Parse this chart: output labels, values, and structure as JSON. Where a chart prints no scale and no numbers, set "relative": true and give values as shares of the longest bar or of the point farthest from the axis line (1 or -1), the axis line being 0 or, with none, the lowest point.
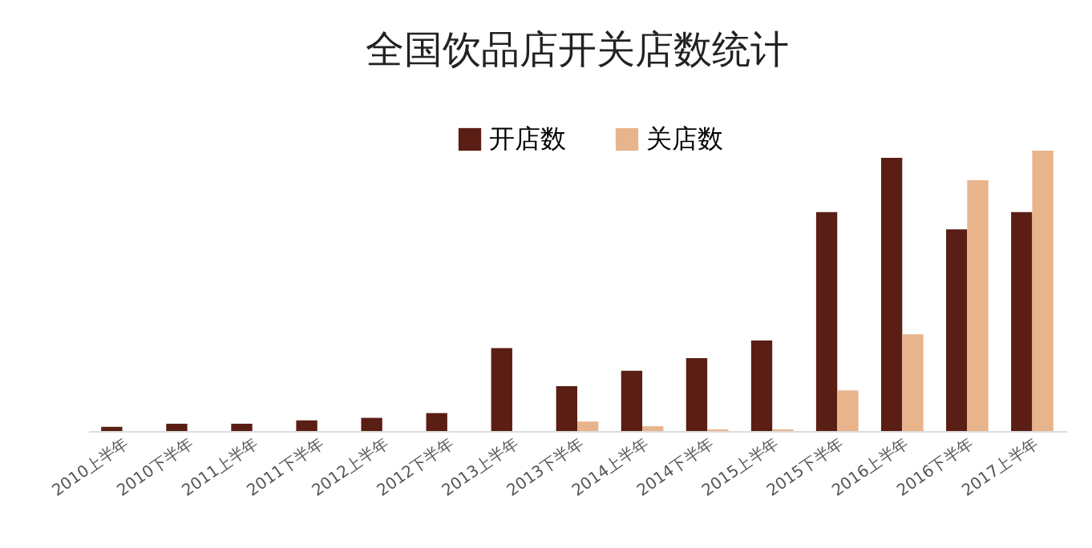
{
  "chart_data": {
    "type": "bar",
    "title": "全国饮品店开关店数统计",
    "relative": true,
    "legend": "top",
    "categories": [
      "2010上半年",
      "2010下半年",
      "2011上半年",
      "2011下半年",
      "2012上半年",
      "2012下半年",
      "2013上半年",
      "2013下半年",
      "2014上半年",
      "2014下半年",
      "2015上半年",
      "2015下半年",
      "2016上半年",
      "2016下半年",
      "2017上半年"
    ],
    "series": [
      {
        "name": "开店数",
        "color": "#5a1e14",
        "values": [
          0.015,
          0.026,
          0.026,
          0.038,
          0.047,
          0.064,
          0.296,
          0.16,
          0.215,
          0.26,
          0.323,
          0.781,
          0.974,
          0.719,
          0.781
        ]
      },
      {
        "name": "关店数",
        "color": "#e8b48c",
        "values": [
          null,
          null,
          null,
          null,
          null,
          null,
          null,
          0.034,
          0.017,
          0.006,
          0.006,
          0.145,
          0.345,
          0.894,
          1
        ]
      }
    ]
  }
}
